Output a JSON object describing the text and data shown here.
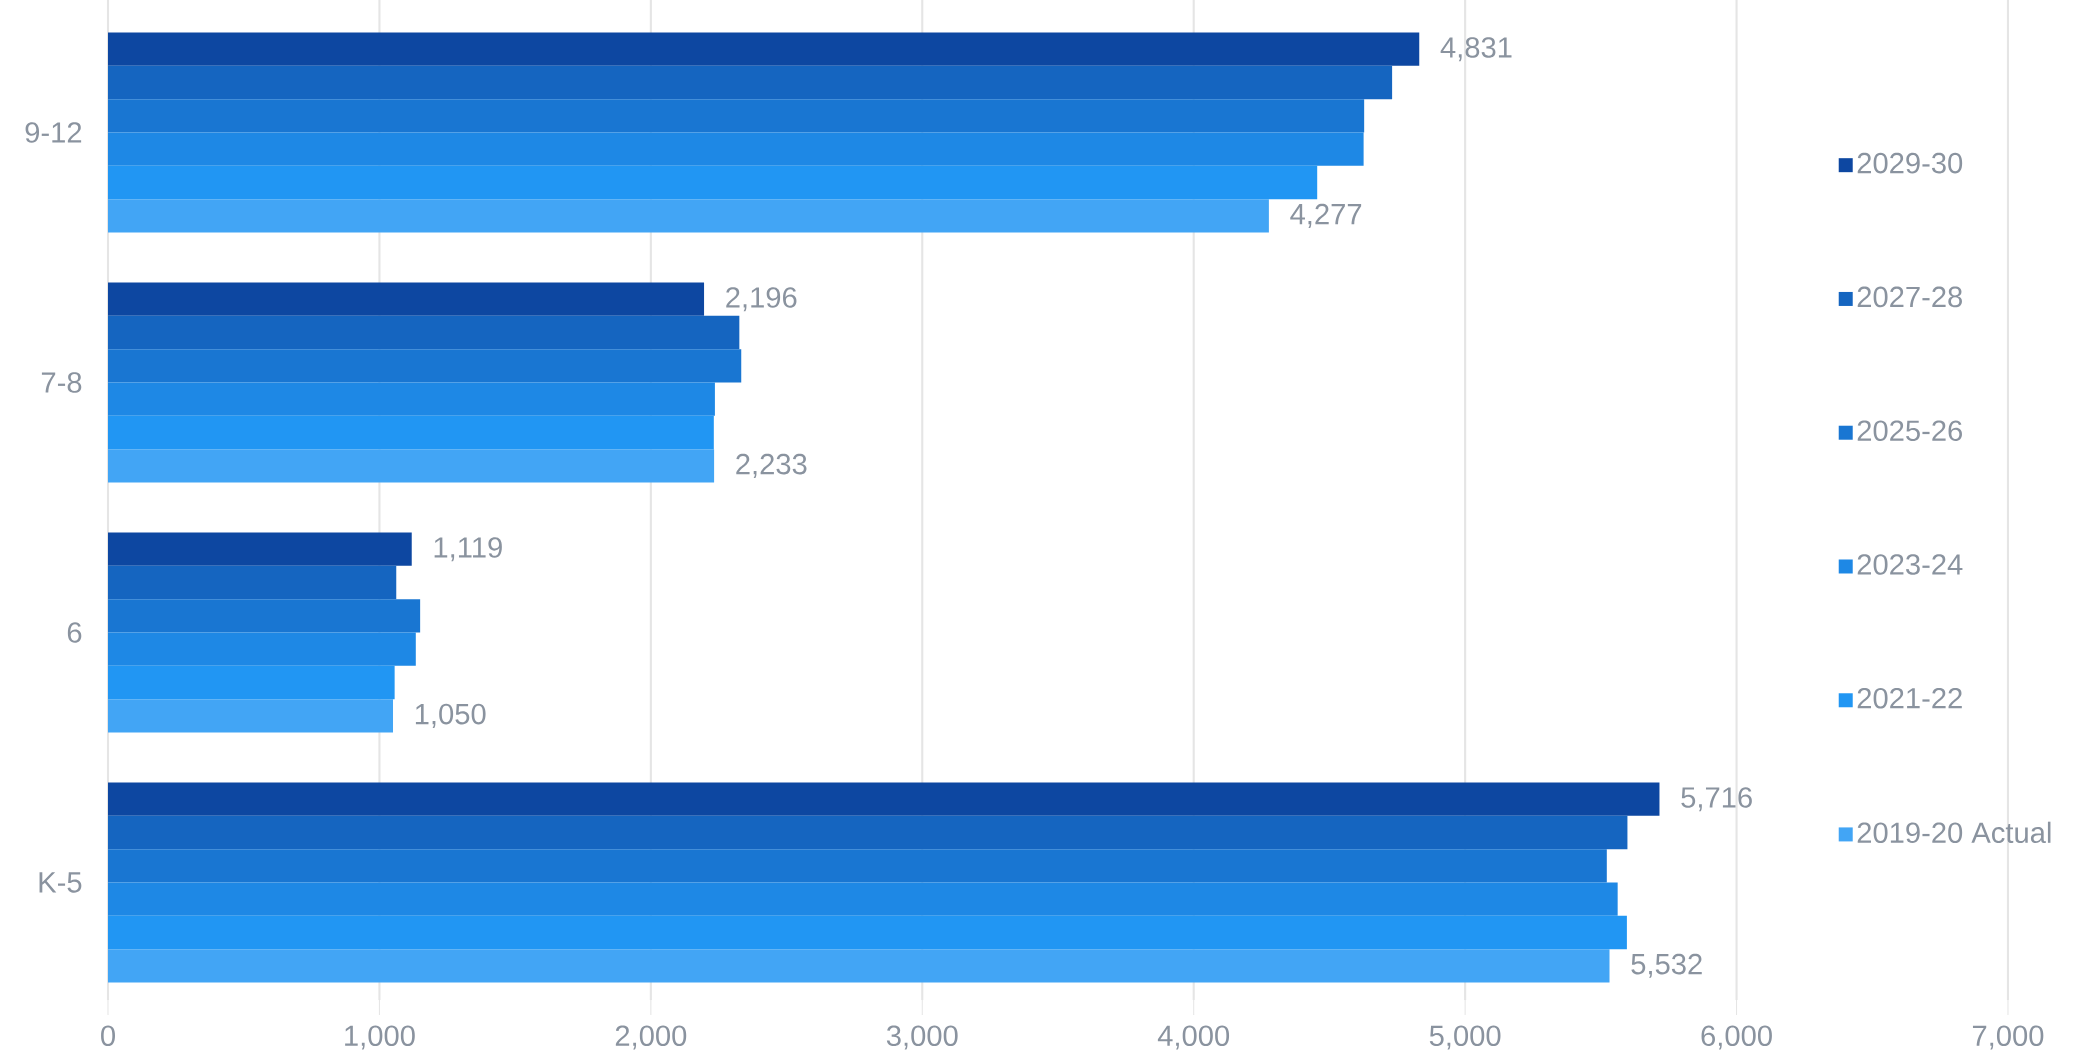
{
  "chart_data": {
    "type": "bar",
    "orientation": "horizontal",
    "categories": [
      "9-12",
      "7-8",
      "6",
      "K-5"
    ],
    "series": [
      {
        "name": "2029-30",
        "color": "#0d47a1",
        "values": [
          4831,
          2196,
          1119,
          5716
        ],
        "value_labels": [
          "4,831",
          "2,196",
          "1,119",
          "5,716"
        ]
      },
      {
        "name": "2027-28",
        "color": "#1565c0",
        "values": [
          4731,
          2326,
          1062,
          5598
        ]
      },
      {
        "name": "2025-26",
        "color": "#1976d2",
        "values": [
          4628,
          2333,
          1150,
          5522
        ]
      },
      {
        "name": "2023-24",
        "color": "#1e88e5",
        "values": [
          4626,
          2236,
          1134,
          5562
        ]
      },
      {
        "name": "2021-22",
        "color": "#2196f3",
        "values": [
          4455,
          2232,
          1056,
          5596
        ]
      },
      {
        "name": "2019-20 Actual",
        "color": "#42a5f5",
        "values": [
          4277,
          2233,
          1050,
          5532
        ],
        "value_labels": [
          "4,277",
          "2,233",
          "1,050",
          "5,532"
        ]
      }
    ],
    "xlim": [
      0,
      7000
    ],
    "xticks": [
      0,
      {
        "value": 1000,
        "label": "1,000"
      },
      {
        "value": 2000,
        "label": "2,000"
      },
      {
        "value": 3000,
        "label": "3,000"
      },
      {
        "value": 4000,
        "label": "4,000"
      },
      {
        "value": 5000,
        "label": "5,000"
      },
      {
        "value": 6000,
        "label": "6,000"
      },
      {
        "value": 7000,
        "label": "7,000"
      }
    ],
    "grid": "x",
    "legend": "right"
  }
}
